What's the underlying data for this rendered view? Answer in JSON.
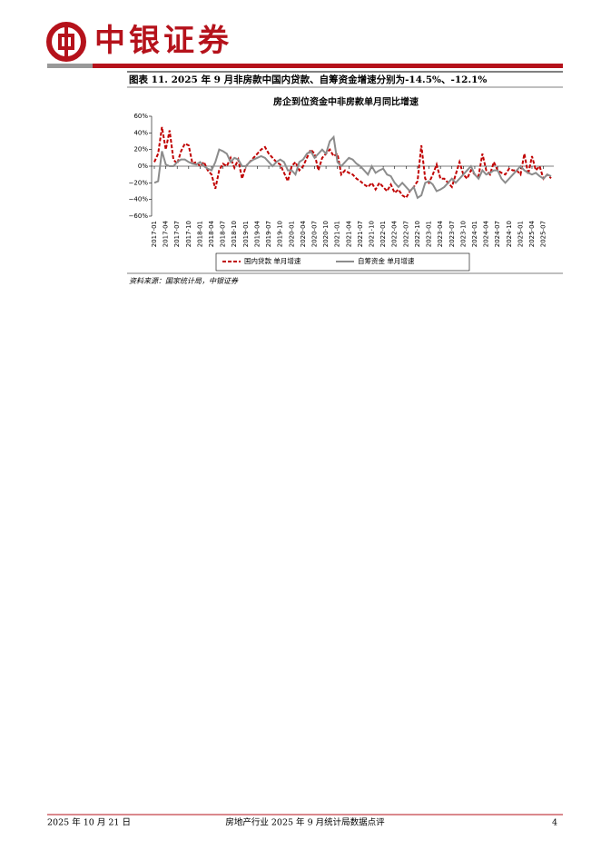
{
  "header": {
    "brand": "中银证券"
  },
  "figure": {
    "caption": "图表 11. 2025 年 9 月非房款中国内贷款、自筹资金增速分别为-14.5%、-12.1%",
    "source": "资料来源：国家统计局，中银证券"
  },
  "chart_data": {
    "type": "line",
    "title": "房企到位资金中非房款单月同比增速",
    "categories": [
      "2017-01",
      null,
      null,
      "2017-04",
      null,
      null,
      "2017-07",
      null,
      null,
      "2017-10",
      null,
      null,
      "2018-01",
      null,
      null,
      "2018-04",
      null,
      null,
      "2018-07",
      null,
      null,
      "2018-10",
      null,
      null,
      "2019-01",
      null,
      null,
      "2019-04",
      null,
      null,
      "2019-07",
      null,
      null,
      "2019-10",
      null,
      null,
      "2020-01",
      null,
      null,
      "2020-04",
      null,
      null,
      "2020-07",
      null,
      null,
      "2020-10",
      null,
      null,
      "2021-01",
      null,
      null,
      "2021-04",
      null,
      null,
      "2021-07",
      null,
      null,
      "2021-10",
      null,
      null,
      "2022-01",
      null,
      null,
      "2022-04",
      null,
      null,
      "2022-07",
      null,
      null,
      "2022-10",
      null,
      null,
      "2023-01",
      null,
      null,
      "2023-04",
      null,
      null,
      "2023-07",
      null,
      null,
      "2023-10",
      null,
      null,
      "2024-01",
      null,
      null,
      "2024-04",
      null,
      null,
      "2024-07",
      null,
      null,
      "2024-10",
      null,
      null,
      "2025-01",
      null,
      null,
      "2025-04",
      null,
      null,
      "2025-07",
      null,
      null
    ],
    "series": [
      {
        "name": "国内贷款 单月增速",
        "color": "#c00000",
        "dash": true,
        "values": [
          5,
          15,
          47,
          20,
          43,
          8,
          3,
          18,
          27,
          25,
          3,
          5,
          0,
          5,
          -5,
          -10,
          -27,
          -5,
          3,
          0,
          10,
          -2,
          8,
          -15,
          0,
          5,
          10,
          15,
          20,
          23,
          15,
          10,
          5,
          2,
          -8,
          -18,
          0,
          5,
          -5,
          0,
          10,
          20,
          15,
          -5,
          10,
          15,
          20,
          12,
          15,
          -10,
          -5,
          -8,
          -10,
          -15,
          -18,
          -22,
          -25,
          -20,
          -28,
          -20,
          -25,
          -30,
          -22,
          -32,
          -28,
          -35,
          -38,
          -30,
          -25,
          -18,
          25,
          -15,
          -20,
          -10,
          2,
          -15,
          -15,
          -20,
          -25,
          -10,
          5,
          -10,
          -15,
          -5,
          -10,
          -12,
          15,
          -5,
          -10,
          5,
          -5,
          -8,
          -10,
          -3,
          -5,
          -5,
          -10,
          15,
          -10,
          12,
          -5,
          0,
          -15,
          -10,
          -14.5
        ]
      },
      {
        "name": "自筹资金 单月增速",
        "color": "#8c8c8c",
        "dash": false,
        "values": [
          -20,
          -18,
          18,
          2,
          0,
          0,
          5,
          8,
          8,
          5,
          3,
          2,
          5,
          0,
          -3,
          -5,
          5,
          20,
          18,
          15,
          5,
          10,
          8,
          0,
          0,
          5,
          8,
          10,
          12,
          10,
          5,
          0,
          5,
          8,
          5,
          -5,
          -5,
          -10,
          5,
          8,
          15,
          18,
          10,
          15,
          20,
          15,
          30,
          35,
          5,
          0,
          5,
          10,
          8,
          3,
          0,
          -5,
          -10,
          0,
          -8,
          -5,
          -3,
          -10,
          -12,
          -20,
          -25,
          -20,
          -25,
          -30,
          -25,
          -38,
          -35,
          -20,
          -18,
          -22,
          -30,
          -28,
          -25,
          -20,
          -15,
          -20,
          -15,
          -10,
          -5,
          0,
          -10,
          -15,
          -5,
          -10,
          -8,
          -5,
          -5,
          -15,
          -20,
          -15,
          -10,
          -5,
          0,
          -5,
          -8,
          -10,
          -8,
          -12,
          -15,
          -10,
          -12.1
        ]
      }
    ],
    "ylim": [
      -60,
      60
    ],
    "yticks": [
      {
        "value": -60,
        "label": "−60%"
      },
      {
        "value": -40,
        "label": "−40%"
      },
      {
        "value": -20,
        "label": "−20%"
      },
      {
        "value": 0,
        "label": "0%"
      },
      {
        "value": 20,
        "label": "20%"
      },
      {
        "value": 40,
        "label": "40%"
      },
      {
        "value": 60,
        "label": "60%"
      }
    ]
  },
  "footer": {
    "date": "2025 年 10 月 21 日",
    "report": "房地产行业 2025 年 9 月统计局数据点评",
    "page": "4"
  }
}
